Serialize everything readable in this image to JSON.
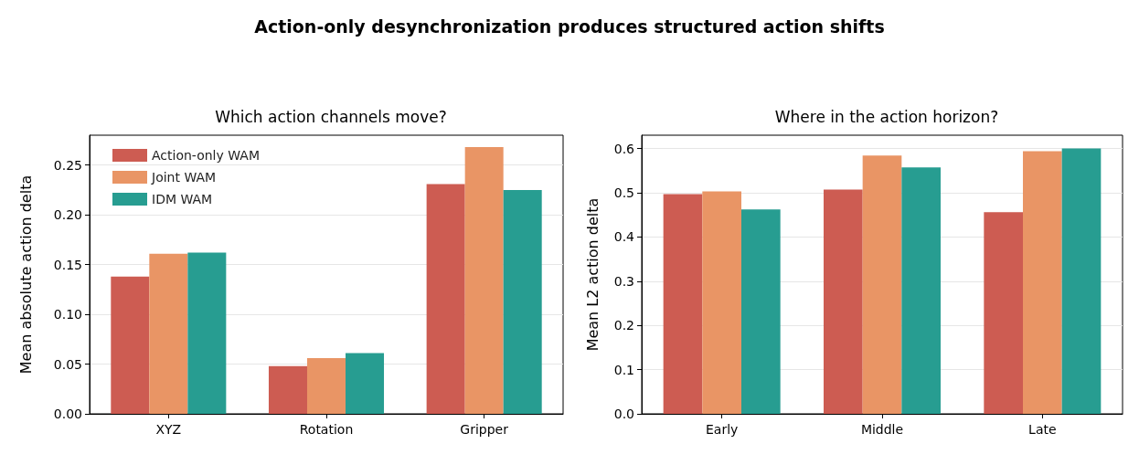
{
  "chart_data": [
    {
      "type": "bar",
      "title": "Action-only desynchronization produces structured action shifts",
      "subtitle": "Which action channels move?",
      "ylabel": "Mean absolute action delta",
      "categories": [
        "XYZ",
        "Rotation",
        "Gripper"
      ],
      "series": [
        {
          "name": "Action-only WAM",
          "color": "#cd5c52",
          "values": [
            0.138,
            0.048,
            0.231
          ]
        },
        {
          "name": "Joint WAM",
          "color": "#e99565",
          "values": [
            0.161,
            0.056,
            0.268
          ]
        },
        {
          "name": "IDM WAM",
          "color": "#279d91",
          "values": [
            0.162,
            0.061,
            0.225
          ]
        }
      ],
      "ylim": [
        0,
        0.28
      ],
      "yticks": [
        {
          "value": 0,
          "label": "0.00"
        },
        0.05,
        {
          "value": 0.1,
          "label": "0.10"
        },
        0.15,
        {
          "value": 0.2,
          "label": "0.20"
        },
        0.25
      ],
      "grid": "y",
      "legend": "top left"
    },
    {
      "type": "bar",
      "title": "Where in the action horizon?",
      "ylabel": "Mean L2 action delta",
      "categories": [
        "Early",
        "Middle",
        "Late"
      ],
      "series": [
        {
          "color": "#cd5c52",
          "values": [
            0.497,
            0.507,
            0.456
          ]
        },
        {
          "color": "#e99565",
          "values": [
            0.503,
            0.584,
            0.594
          ]
        },
        {
          "color": "#279d91",
          "values": [
            0.462,
            0.557,
            0.6
          ]
        }
      ],
      "ylim": [
        0,
        0.63
      ],
      "yticks": [
        {
          "value": 0,
          "label": "0.0"
        },
        0.1,
        0.2,
        0.3,
        0.4,
        0.5,
        0.6
      ],
      "grid": "y",
      "legend": false
    }
  ]
}
